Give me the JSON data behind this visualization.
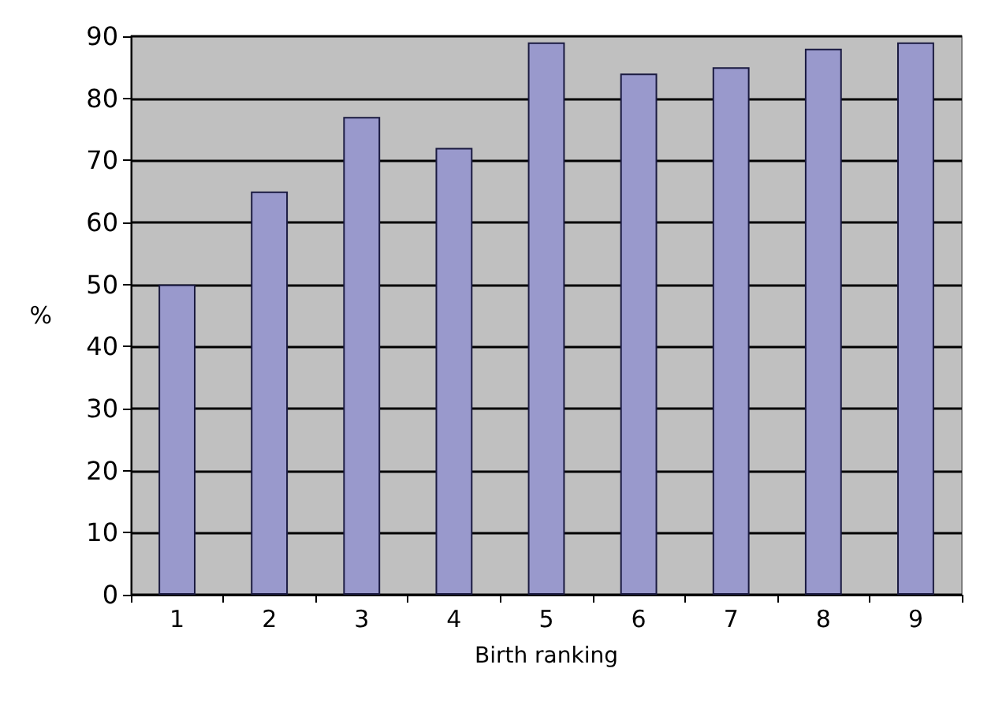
{
  "chart_data": {
    "type": "bar",
    "xlabel": "Birth ranking",
    "ylabel": "%",
    "categories": [
      "1",
      "2",
      "3",
      "4",
      "5",
      "6",
      "7",
      "8",
      "9"
    ],
    "values": [
      50,
      65,
      77,
      72,
      89,
      84,
      85,
      88,
      89
    ],
    "color": "#9999cc",
    "ylim": [
      0,
      90
    ],
    "yticks": [
      0,
      10,
      20,
      30,
      40,
      50,
      60,
      70,
      80,
      90
    ],
    "grid": "y"
  }
}
